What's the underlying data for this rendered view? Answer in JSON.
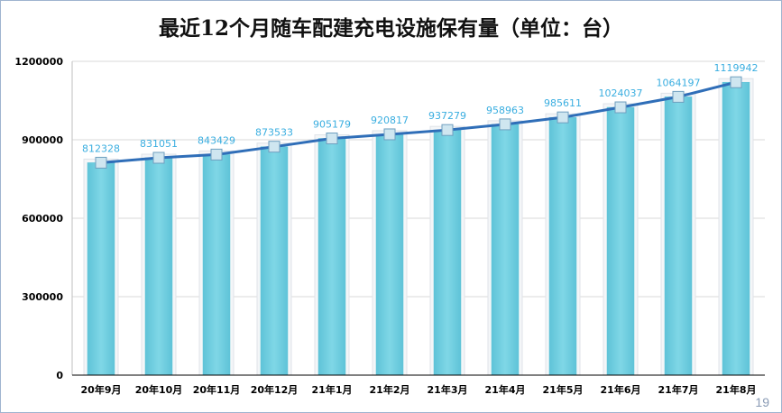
{
  "page": {
    "number": "19"
  },
  "colors": {
    "bar_fill": "#7fd7e6",
    "bar_edge": "#5fc3d8",
    "line": "#2f6eb8",
    "marker": "#cfe6f0",
    "data_label": "#3aaee0",
    "frame": "#9fb4cf"
  },
  "chart_data": {
    "type": "bar",
    "title": "最近12个月随车配建充电设施保有量（单位：台）",
    "xlabel": "",
    "ylabel": "",
    "categories": [
      "20年9月",
      "20年10月",
      "20年11月",
      "20年12月",
      "21年1月",
      "21年2月",
      "21年3月",
      "21年4月",
      "21年5月",
      "21年6月",
      "21年7月",
      "21年8月"
    ],
    "values": [
      812328,
      831051,
      843429,
      873533,
      905179,
      920817,
      937279,
      958963,
      985611,
      1024037,
      1064197,
      1119942
    ],
    "value_labels": [
      "812328",
      "831051",
      "843429",
      "873533",
      "905179",
      "920817",
      "937279",
      "958963",
      "985611",
      "1024037",
      "1064197",
      "1119942"
    ],
    "overlay_line": true,
    "ylim": [
      0,
      1200000
    ],
    "yticks": [
      0,
      300000,
      600000,
      900000,
      1200000
    ],
    "ytick_labels": [
      "0",
      "300000",
      "600000",
      "900000",
      "1200000"
    ],
    "grid": true,
    "legend": "none"
  }
}
